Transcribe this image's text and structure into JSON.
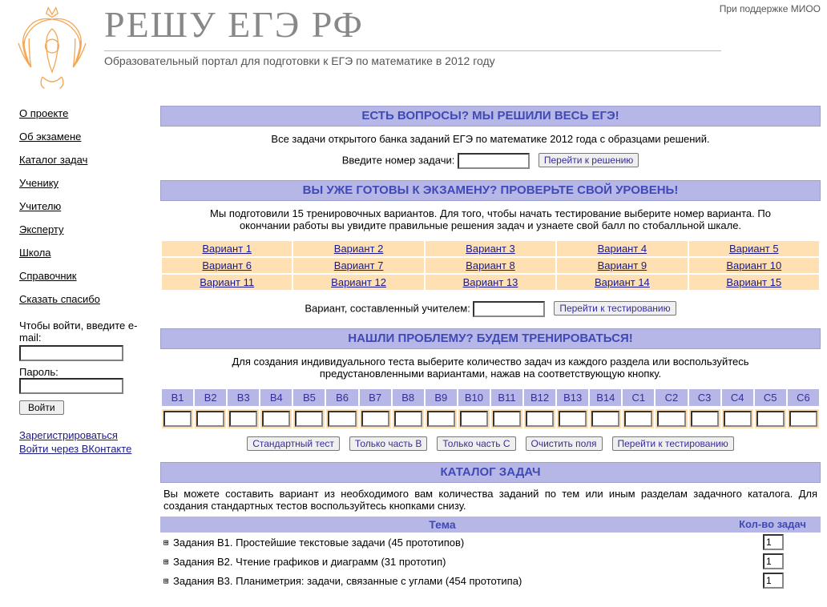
{
  "support_text": "При поддержке МИОО",
  "header": {
    "title": "РЕШУ ЕГЭ РФ",
    "subtitle": "Образовательный портал для подготовки к ЕГЭ по математике в 2012 году"
  },
  "sidebar": {
    "nav": [
      "О проекте",
      "Об экзамене",
      "Каталог задач",
      "Ученику",
      "Учителю",
      "Эксперту",
      "Школа",
      "Справочник",
      "Сказать спасибо"
    ],
    "login_intro": "Чтобы войти, введите e-mail:",
    "password_label": "Пароль:",
    "login_btn": "Войти",
    "register_link": "Зарегистрироваться",
    "vk_login_link": "Войти через ВКонтакте"
  },
  "sections": {
    "questions": {
      "band": "ЕСТЬ ВОПРОСЫ? МЫ РЕШИЛИ ВЕСЬ ЕГЭ!",
      "desc": "Все задачи открытого банка заданий ЕГЭ по математике 2012 года с образцами решений.",
      "input_label": "Введите номер задачи:",
      "go_btn": "Перейти к решению"
    },
    "ready": {
      "band": "ВЫ УЖЕ ГОТОВЫ К ЭКЗАМЕНУ? ПРОВЕРЬТЕ СВОЙ УРОВЕНЬ!",
      "desc": "Мы подготовили 15 тренировочных вариантов. Для того, чтобы начать тестирование выберите номер варианта. По окончании работы вы увидите правильные решения задач и узнаете свой балл по стобалльной шкале.",
      "variants": [
        [
          "Вариант 1",
          "Вариант 2",
          "Вариант 3",
          "Вариант 4",
          "Вариант 5"
        ],
        [
          "Вариант 6",
          "Вариант 7",
          "Вариант 8",
          "Вариант 9",
          "Вариант 10"
        ],
        [
          "Вариант 11",
          "Вариант 12",
          "Вариант 13",
          "Вариант 14",
          "Вариант 15"
        ]
      ],
      "teacher_label": "Вариант, составленный учителем:",
      "go_btn": "Перейти к тестированию"
    },
    "train": {
      "band": "НАШЛИ ПРОБЛЕМУ? БУДЕМ ТРЕНИРОВАТЬСЯ!",
      "desc": "Для создания индивидуального теста выберите количество задач из каждого раздела или воспользуйтесь предустановленными вариантами, нажав на соответствующую кнопку.",
      "task_heads": [
        "B1",
        "B2",
        "B3",
        "B4",
        "B5",
        "B6",
        "B7",
        "B8",
        "B9",
        "B10",
        "B11",
        "B12",
        "B13",
        "B14",
        "C1",
        "C2",
        "C3",
        "C4",
        "C5",
        "C6"
      ],
      "buttons": [
        "Стандартный тест",
        "Только часть B",
        "Только часть C",
        "Очистить поля",
        "Перейти к тестированию"
      ]
    },
    "catalog": {
      "band": "КАТАЛОГ ЗАДАЧ",
      "desc": "Вы можете составить вариант из необходимого вам количества заданий по тем или иным разделам задачного каталога. Для создания стандартных тестов воспользуйтесь кнопками снизу.",
      "head_topic": "Тема",
      "head_count": "Кол-во задач",
      "rows": [
        {
          "label": "Задания В1. Простейшие текстовые задачи (45 прототипов)",
          "val": "1"
        },
        {
          "label": "Задания В2. Чтение графиков и диаграмм (31 прототип)",
          "val": "1"
        },
        {
          "label": "Задания В3. Планиметрия: задачи, связанные с углами (454 прототипа)",
          "val": "1"
        }
      ]
    }
  }
}
